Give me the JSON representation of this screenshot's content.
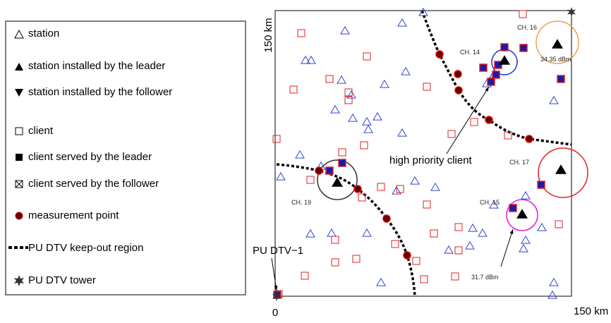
{
  "legend": [
    "station",
    "station installed by the leader",
    "station installed by the follower",
    "client",
    "client served by the leader",
    "client served by the follower",
    "measurement point",
    "PU DTV keep-out region",
    "PU DTV tower"
  ],
  "axes": {
    "y_top": "150 km",
    "origin": "0",
    "x_right": "150 km"
  },
  "annotations": {
    "ch16": "CH. 16",
    "power16": "34.35 dBm",
    "ch14": "CH. 14",
    "ch17": "CH. 17",
    "ch19": "CH. 19",
    "ch15": "CH. 15",
    "power15": "31.7 dBm",
    "high_priority": "high priority client",
    "pu_dtv": "PU DTV−1"
  }
}
